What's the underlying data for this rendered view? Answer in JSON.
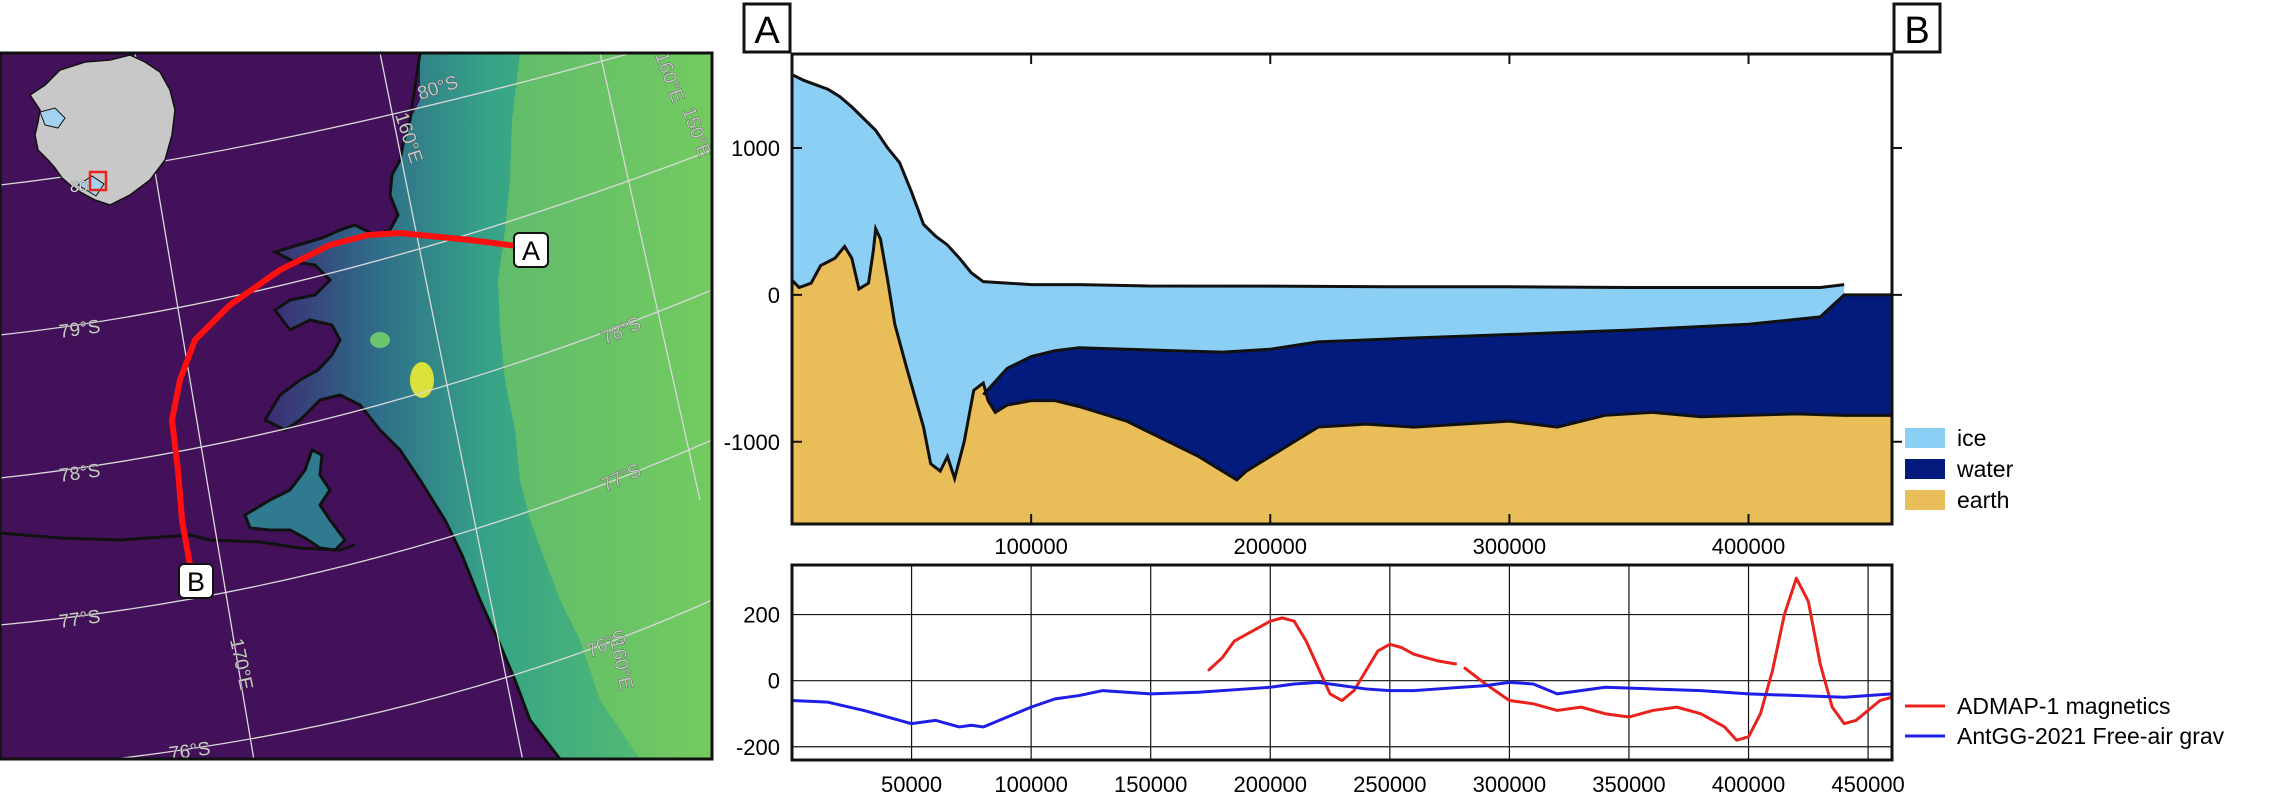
{
  "map": {
    "latitude_labels": [
      "80°S",
      "79°S",
      "78°S",
      "77°S",
      "76°S",
      "78°S",
      "77°S",
      "76°S"
    ],
    "longitude_labels": [
      "160°E",
      "170°E",
      "160°E",
      "150°E",
      "160°E"
    ],
    "inset_label": "80",
    "profile_start_label": "A",
    "profile_end_label": "B",
    "colors": {
      "ocean": "#43105a",
      "profile_line": "#ff1010",
      "inset_land": "#c8c8c8",
      "inset_ice": "#a3d2f0"
    }
  },
  "profile_labels": {
    "start": "A",
    "end": "B"
  },
  "chart_data": [
    {
      "type": "area",
      "x_range": [
        0,
        460000
      ],
      "ylim": [
        -1560,
        1640
      ],
      "x_ticks": [
        100000,
        200000,
        300000,
        400000
      ],
      "y_ticks": [
        1000,
        0,
        -1000
      ],
      "x_tick_labels": [
        "100000",
        "200000",
        "300000",
        "400000"
      ],
      "y_tick_labels": [
        "1000",
        "0",
        "-1000"
      ],
      "grid": false,
      "legend_placement": "right",
      "series": [
        {
          "name": "ice",
          "color": "#8ccff5",
          "x": [
            0,
            5000,
            10000,
            15000,
            20000,
            25000,
            30000,
            35000,
            40000,
            45000,
            50000,
            55000,
            60000,
            65000,
            70000,
            75000,
            80000,
            90000,
            100000,
            120000,
            150000,
            200000,
            250000,
            300000,
            350000,
            400000,
            430000,
            440000
          ],
          "y": [
            1500,
            1460,
            1430,
            1400,
            1350,
            1280,
            1200,
            1120,
            1000,
            900,
            700,
            480,
            400,
            340,
            250,
            150,
            90,
            80,
            70,
            70,
            60,
            60,
            55,
            55,
            50,
            50,
            50,
            70
          ]
        },
        {
          "name": "water",
          "color": "#031b7c",
          "x": [
            80000,
            90000,
            100000,
            110000,
            120000,
            140000,
            160000,
            180000,
            200000,
            220000,
            250000,
            300000,
            350000,
            400000,
            430000,
            440000,
            460000
          ],
          "y": [
            -680,
            -500,
            -420,
            -380,
            -360,
            -370,
            -380,
            -390,
            -370,
            -320,
            -300,
            -270,
            -240,
            -200,
            -150,
            0,
            0
          ]
        },
        {
          "name": "earth",
          "color": "#e9bd58",
          "x": [
            0,
            3000,
            8000,
            12000,
            18000,
            22000,
            25000,
            28000,
            32000,
            34000,
            35000,
            37000,
            40000,
            43000,
            48000,
            55000,
            58000,
            62000,
            65000,
            68000,
            72000,
            76000,
            80000,
            82000,
            85000,
            90000,
            100000,
            110000,
            120000,
            140000,
            160000,
            170000,
            180000,
            186000,
            190000,
            200000,
            210000,
            220000,
            240000,
            260000,
            280000,
            300000,
            320000,
            340000,
            360000,
            380000,
            400000,
            420000,
            440000,
            460000
          ],
          "y": [
            100,
            50,
            80,
            200,
            250,
            330,
            250,
            40,
            80,
            300,
            450,
            380,
            100,
            -200,
            -500,
            -900,
            -1150,
            -1200,
            -1100,
            -1250,
            -1000,
            -650,
            -600,
            -720,
            -800,
            -750,
            -720,
            -720,
            -760,
            -860,
            -1020,
            -1100,
            -1200,
            -1260,
            -1200,
            -1100,
            -1000,
            -900,
            -880,
            -900,
            -880,
            -860,
            -900,
            -820,
            -800,
            -830,
            -820,
            -810,
            -820,
            -820
          ]
        }
      ]
    },
    {
      "type": "line",
      "x_range": [
        0,
        460000
      ],
      "ylim": [
        -240,
        350
      ],
      "x_ticks": [
        50000,
        100000,
        150000,
        200000,
        250000,
        300000,
        350000,
        400000,
        450000
      ],
      "y_ticks": [
        200,
        0,
        -200
      ],
      "x_tick_labels": [
        "50000",
        "100000",
        "150000",
        "200000",
        "250000",
        "300000",
        "350000",
        "400000",
        "450000"
      ],
      "y_tick_labels": [
        "200",
        "0",
        "-200"
      ],
      "grid": true,
      "legend_placement": "right",
      "series": [
        {
          "name": "ADMAP-1 magnetics",
          "color": "#e8221c",
          "segments": [
            {
              "x": [
                174000,
                180000,
                185000,
                195000,
                200000,
                205000,
                210000,
                215000,
                220000,
                225000,
                230000,
                235000,
                240000,
                245000,
                250000,
                255000,
                260000,
                265000,
                270000,
                278000
              ],
              "y": [
                30,
                70,
                120,
                160,
                180,
                190,
                180,
                120,
                40,
                -40,
                -60,
                -30,
                30,
                90,
                110,
                100,
                80,
                70,
                60,
                50
              ]
            },
            {
              "x": [
                281000,
                290000,
                300000,
                310000,
                320000,
                330000,
                340000,
                350000,
                360000,
                370000,
                380000,
                390000,
                395000,
                400000,
                405000,
                410000,
                415000,
                420000,
                425000,
                430000,
                435000,
                440000,
                445000,
                450000,
                455000,
                460000
              ],
              "y": [
                40,
                -10,
                -60,
                -70,
                -90,
                -80,
                -100,
                -110,
                -90,
                -80,
                -100,
                -140,
                -180,
                -170,
                -100,
                30,
                200,
                310,
                240,
                50,
                -80,
                -130,
                -120,
                -90,
                -60,
                -50
              ]
            }
          ]
        },
        {
          "name": "AntGG-2021 Free-air grav",
          "color": "#1e1ee6",
          "segments": [
            {
              "x": [
                0,
                15000,
                30000,
                40000,
                50000,
                60000,
                65000,
                70000,
                75000,
                80000,
                100000,
                110000,
                120000,
                130000,
                150000,
                170000,
                190000,
                200000,
                210000,
                220000,
                230000,
                240000,
                250000,
                260000,
                270000,
                280000,
                290000,
                300000,
                310000,
                320000,
                340000,
                360000,
                380000,
                400000,
                420000,
                440000,
                460000
              ],
              "y": [
                -60,
                -65,
                -90,
                -110,
                -130,
                -120,
                -130,
                -140,
                -135,
                -140,
                -80,
                -55,
                -45,
                -30,
                -40,
                -35,
                -25,
                -20,
                -10,
                -5,
                -15,
                -25,
                -30,
                -30,
                -25,
                -20,
                -15,
                -5,
                -10,
                -40,
                -20,
                -25,
                -30,
                -40,
                -45,
                -50,
                -40
              ]
            }
          ]
        }
      ]
    }
  ]
}
